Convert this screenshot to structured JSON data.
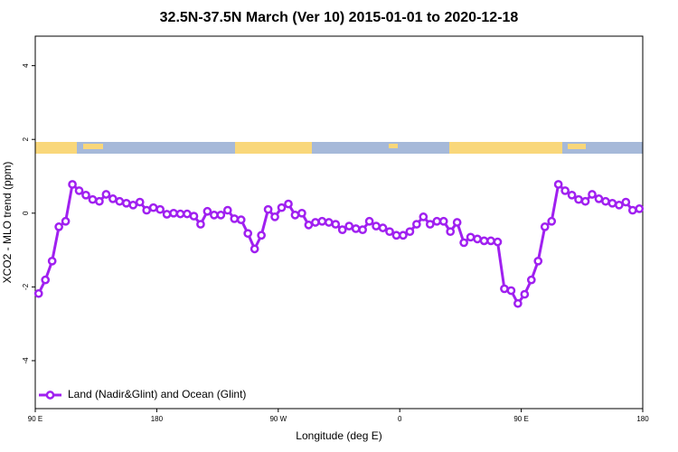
{
  "chart_data": {
    "type": "line",
    "title": "32.5N-37.5N March (Ver 10)   2015-01-01 to 2020-12-18",
    "x_label": "Longitude (deg E)",
    "y_label": "XCO2 - MLO trend (ppm)",
    "xlim": [
      90,
      540
    ],
    "xticks": [
      {
        "value": 90,
        "label": "90 E"
      },
      180,
      {
        "value": 270,
        "label": "90 W"
      },
      {
        "value": 360,
        "label": "0"
      },
      {
        "value": 450,
        "label": "90 E"
      },
      180.0001
    ],
    "ylim": [
      -5.3,
      4.8
    ],
    "yticks": [
      -4,
      -2,
      0,
      2,
      4
    ],
    "legend_position": "bottom-left",
    "x": [
      92.5,
      97.5,
      102.5,
      107.5,
      112.5,
      117.5,
      122.5,
      127.5,
      132.5,
      137.5,
      142.5,
      147.5,
      152.5,
      157.5,
      162.5,
      167.5,
      172.5,
      177.5,
      182.5,
      187.5,
      192.5,
      197.5,
      202.5,
      207.5,
      212.5,
      217.5,
      222.5,
      227.5,
      232.5,
      237.5,
      242.5,
      247.5,
      252.5,
      257.5,
      262.5,
      267.5,
      272.5,
      277.5,
      282.5,
      287.5,
      292.5,
      297.5,
      302.5,
      307.5,
      312.5,
      317.5,
      322.5,
      327.5,
      332.5,
      337.5,
      342.5,
      347.5,
      352.5,
      357.5,
      362.5,
      367.5,
      372.5,
      377.5,
      382.5,
      387.5,
      392.5,
      397.5,
      402.5,
      407.5,
      412.5,
      417.5,
      422.5,
      427.5,
      432.5,
      437.5,
      442.5,
      447.5,
      452.5,
      457.5,
      462.5,
      467.5,
      472.5,
      477.5,
      482.5,
      487.5,
      492.5,
      497.5,
      502.5,
      507.5,
      512.5,
      517.5,
      522.5,
      527.5,
      532.5,
      537.5
    ],
    "series": [
      {
        "name": "Land (Nadir&Glint) and Ocean (Glint)",
        "color": "#a020f0",
        "values": [
          -2.18,
          -1.81,
          -1.3,
          -0.37,
          -0.22,
          0.78,
          0.61,
          0.49,
          0.37,
          0.32,
          0.51,
          0.39,
          0.32,
          0.27,
          0.22,
          0.3,
          0.08,
          0.15,
          0.1,
          -0.03,
          0.0,
          -0.02,
          -0.02,
          -0.08,
          -0.3,
          0.05,
          -0.05,
          -0.05,
          0.08,
          -0.15,
          -0.18,
          -0.55,
          -0.97,
          -0.6,
          0.1,
          -0.1,
          0.15,
          0.25,
          -0.05,
          0.0,
          -0.32,
          -0.25,
          -0.22,
          -0.25,
          -0.3,
          -0.45,
          -0.35,
          -0.42,
          -0.45,
          -0.22,
          -0.35,
          -0.4,
          -0.5,
          -0.6,
          -0.6,
          -0.5,
          -0.3,
          -0.1,
          -0.3,
          -0.22,
          -0.22,
          -0.5,
          -0.25,
          -0.8,
          -0.65,
          -0.7,
          -0.75,
          -0.75,
          -0.78,
          -2.05,
          -2.1,
          -2.45,
          -2.2,
          -1.81,
          -1.3,
          -0.37,
          -0.22,
          0.78,
          0.61,
          0.49,
          0.37,
          0.32,
          0.51,
          0.39,
          0.32,
          0.27,
          0.22,
          0.3,
          0.08,
          0.12
        ]
      }
    ]
  }
}
